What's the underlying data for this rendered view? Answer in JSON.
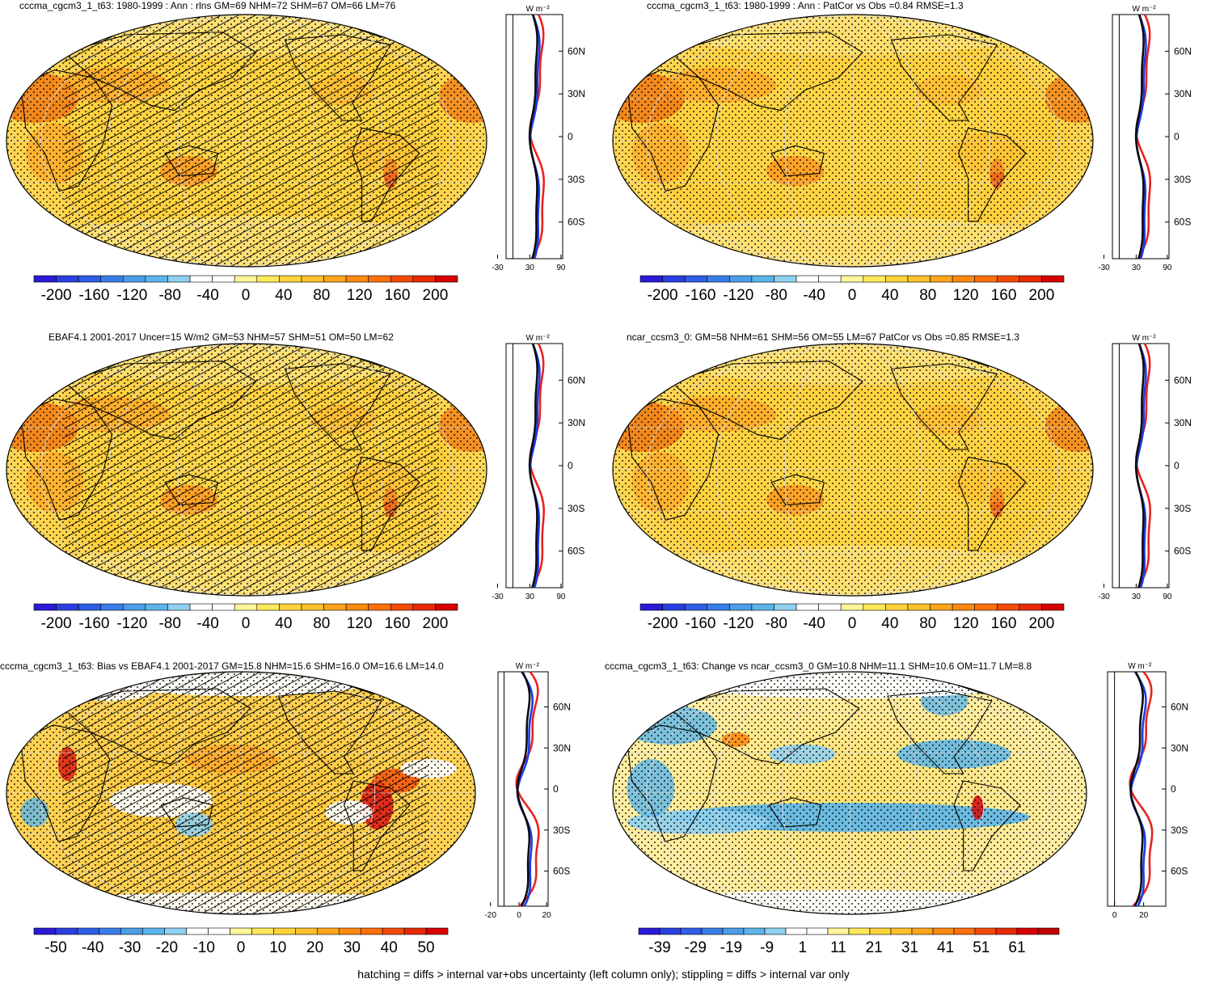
{
  "caption": "hatching = diffs > internal var+obs uncertainty (left column only); stippling = diffs > internal var only",
  "zonal_units": "W m⁻²",
  "lat_ticks": [
    "60N",
    "30N",
    "0",
    "30S",
    "60S"
  ],
  "colors": {
    "obs": "#e8231f",
    "model": "#0c0c0c",
    "reference": "#1a3ce8"
  },
  "panels": [
    {
      "title": "cccma_cgcm3_1_t63: 1980-1999 : Ann : rlns GM=69 NHM=72 SHM=67 OM=66 LM=76",
      "hatching": true,
      "kind": "clim",
      "colorbar": [
        "-200",
        "-160",
        "-120",
        "-80",
        "-40",
        "0",
        "40",
        "80",
        "120",
        "160",
        "200"
      ],
      "zonal_xticks": [
        "-30",
        "30",
        "90"
      ]
    },
    {
      "title": "cccma_cgcm3_1_t63: 1980-1999 : Ann : PatCor vs Obs =0.84 RMSE=1.3",
      "hatching": false,
      "kind": "clim",
      "colorbar": [
        "-200",
        "-160",
        "-120",
        "-80",
        "-40",
        "0",
        "40",
        "80",
        "120",
        "160",
        "200"
      ],
      "zonal_xticks": [
        "-30",
        "30",
        "90"
      ]
    },
    {
      "title": "EBAF4.1 2001-2017 Uncer=15 W/m2 GM=53 NHM=57 SHM=51 OM=50 LM=62",
      "hatching": true,
      "kind": "clim",
      "colorbar": [
        "-200",
        "-160",
        "-120",
        "-80",
        "-40",
        "0",
        "40",
        "80",
        "120",
        "160",
        "200"
      ],
      "zonal_xticks": [
        "-30",
        "30",
        "90"
      ]
    },
    {
      "title": "ncar_ccsm3_0: GM=58 NHM=61 SHM=56 OM=55 LM=67 PatCor vs Obs =0.85 RMSE=1.3",
      "hatching": false,
      "kind": "clim",
      "colorbar": [
        "-200",
        "-160",
        "-120",
        "-80",
        "-40",
        "0",
        "40",
        "80",
        "120",
        "160",
        "200"
      ],
      "zonal_xticks": [
        "-30",
        "30",
        "90"
      ]
    },
    {
      "title": "cccma_cgcm3_1_t63: Bias vs EBAF4.1 2001-2017 GM=15.8 NHM=15.6 SHM=16.0 OM=16.6 LM=14.0",
      "hatching": true,
      "kind": "bias",
      "colorbar": [
        "-50",
        "-40",
        "-30",
        "-20",
        "-10",
        "0",
        "10",
        "20",
        "30",
        "40",
        "50"
      ],
      "zonal_xticks": [
        "-20",
        "0",
        "20"
      ]
    },
    {
      "title": "cccma_cgcm3_1_t63: Change vs ncar_ccsm3_0 GM=10.8 NHM=11.1 SHM=10.6 OM=11.7 LM=8.8",
      "hatching": false,
      "kind": "change",
      "colorbar": [
        "-39",
        "-29",
        "-19",
        "-9",
        "1",
        "11",
        "21",
        "31",
        "41",
        "51",
        "61"
      ],
      "zonal_xticks": [
        "0",
        "20"
      ]
    }
  ]
}
